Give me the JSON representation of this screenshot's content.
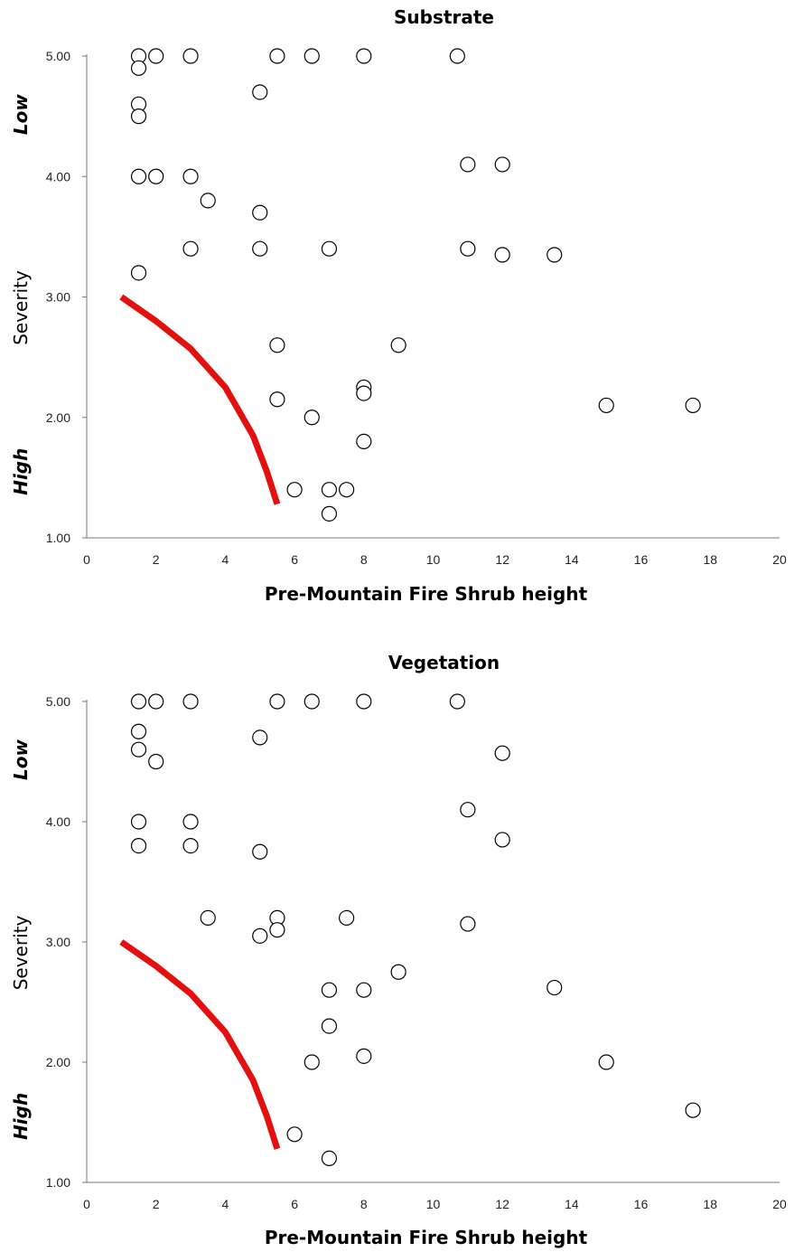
{
  "chart_data": [
    {
      "type": "scatter",
      "title": "Substrate",
      "xlabel": "Pre-Mountain Fire Shrub height",
      "ylabel": "Severity",
      "ylabel_low": "Low",
      "ylabel_high": "High",
      "xlim": [
        0,
        20
      ],
      "ylim": [
        1,
        5
      ],
      "x_ticks": [
        "0",
        "2",
        "4",
        "6",
        "8",
        "10",
        "12",
        "14",
        "16",
        "18",
        "20"
      ],
      "y_ticks": [
        "1.00",
        "2.00",
        "3.00",
        "4.00",
        "5.00"
      ],
      "grid": false,
      "curve_color": "#e31010",
      "curve": [
        [
          1.0,
          3.0
        ],
        [
          2.0,
          2.8
        ],
        [
          3.0,
          2.57
        ],
        [
          4.0,
          2.25
        ],
        [
          4.8,
          1.85
        ],
        [
          5.2,
          1.55
        ],
        [
          5.5,
          1.28
        ]
      ],
      "points": [
        [
          1.5,
          5.0
        ],
        [
          2.0,
          5.0
        ],
        [
          3.0,
          5.0
        ],
        [
          5.5,
          5.0
        ],
        [
          6.5,
          5.0
        ],
        [
          8.0,
          5.0
        ],
        [
          10.7,
          5.0
        ],
        [
          1.5,
          4.9
        ],
        [
          1.5,
          4.6
        ],
        [
          1.5,
          4.5
        ],
        [
          5.0,
          4.7
        ],
        [
          1.5,
          4.0
        ],
        [
          2.0,
          4.0
        ],
        [
          3.0,
          4.0
        ],
        [
          11.0,
          4.1
        ],
        [
          12.0,
          4.1
        ],
        [
          3.5,
          3.8
        ],
        [
          5.0,
          3.7
        ],
        [
          3.0,
          3.4
        ],
        [
          5.0,
          3.4
        ],
        [
          7.0,
          3.4
        ],
        [
          11.0,
          3.4
        ],
        [
          12.0,
          3.35
        ],
        [
          13.5,
          3.35
        ],
        [
          1.5,
          3.2
        ],
        [
          5.5,
          2.6
        ],
        [
          9.0,
          2.6
        ],
        [
          8.0,
          2.25
        ],
        [
          8.0,
          2.2
        ],
        [
          5.5,
          2.15
        ],
        [
          6.5,
          2.0
        ],
        [
          15.0,
          2.1
        ],
        [
          17.5,
          2.1
        ],
        [
          8.0,
          1.8
        ],
        [
          6.0,
          1.4
        ],
        [
          7.0,
          1.4
        ],
        [
          7.5,
          1.4
        ],
        [
          7.0,
          1.2
        ]
      ]
    },
    {
      "type": "scatter",
      "title": "Vegetation",
      "xlabel": "Pre-Mountain Fire Shrub height",
      "ylabel": "Severity",
      "ylabel_low": "Low",
      "ylabel_high": "High",
      "xlim": [
        0,
        20
      ],
      "ylim": [
        1,
        5
      ],
      "x_ticks": [
        "0",
        "2",
        "4",
        "6",
        "8",
        "10",
        "12",
        "14",
        "16",
        "18",
        "20"
      ],
      "y_ticks": [
        "1.00",
        "2.00",
        "3.00",
        "4.00",
        "5.00"
      ],
      "grid": false,
      "curve_color": "#e31010",
      "curve": [
        [
          1.0,
          3.0
        ],
        [
          2.0,
          2.8
        ],
        [
          3.0,
          2.57
        ],
        [
          4.0,
          2.25
        ],
        [
          4.8,
          1.85
        ],
        [
          5.2,
          1.55
        ],
        [
          5.5,
          1.28
        ]
      ],
      "points": [
        [
          1.5,
          5.0
        ],
        [
          2.0,
          5.0
        ],
        [
          3.0,
          5.0
        ],
        [
          5.5,
          5.0
        ],
        [
          6.5,
          5.0
        ],
        [
          8.0,
          5.0
        ],
        [
          10.7,
          5.0
        ],
        [
          1.5,
          4.75
        ],
        [
          1.5,
          4.6
        ],
        [
          2.0,
          4.5
        ],
        [
          5.0,
          4.7
        ],
        [
          12.0,
          4.57
        ],
        [
          1.5,
          4.0
        ],
        [
          3.0,
          4.0
        ],
        [
          11.0,
          4.1
        ],
        [
          1.5,
          3.8
        ],
        [
          3.0,
          3.8
        ],
        [
          5.0,
          3.75
        ],
        [
          12.0,
          3.85
        ],
        [
          3.5,
          3.2
        ],
        [
          5.5,
          3.2
        ],
        [
          7.5,
          3.2
        ],
        [
          11.0,
          3.15
        ],
        [
          5.0,
          3.05
        ],
        [
          5.5,
          3.1
        ],
        [
          9.0,
          2.75
        ],
        [
          7.0,
          2.6
        ],
        [
          8.0,
          2.6
        ],
        [
          13.5,
          2.62
        ],
        [
          7.0,
          2.3
        ],
        [
          6.5,
          2.0
        ],
        [
          8.0,
          2.05
        ],
        [
          15.0,
          2.0
        ],
        [
          17.5,
          1.6
        ],
        [
          6.0,
          1.4
        ],
        [
          7.0,
          1.2
        ]
      ]
    }
  ]
}
